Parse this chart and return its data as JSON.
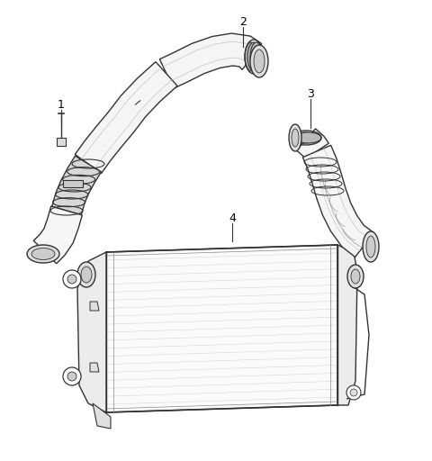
{
  "background_color": "#ffffff",
  "line_color": "#333333",
  "fill_light": "#f5f5f5",
  "fill_mid": "#e0e0e0",
  "fill_dark": "#cccccc",
  "text_color": "#000000",
  "lw_main": 1.0,
  "lw_thin": 0.6,
  "figsize": [
    4.8,
    5.12
  ],
  "dpi": 100,
  "xlim": [
    0,
    480
  ],
  "ylim": [
    0,
    512
  ]
}
